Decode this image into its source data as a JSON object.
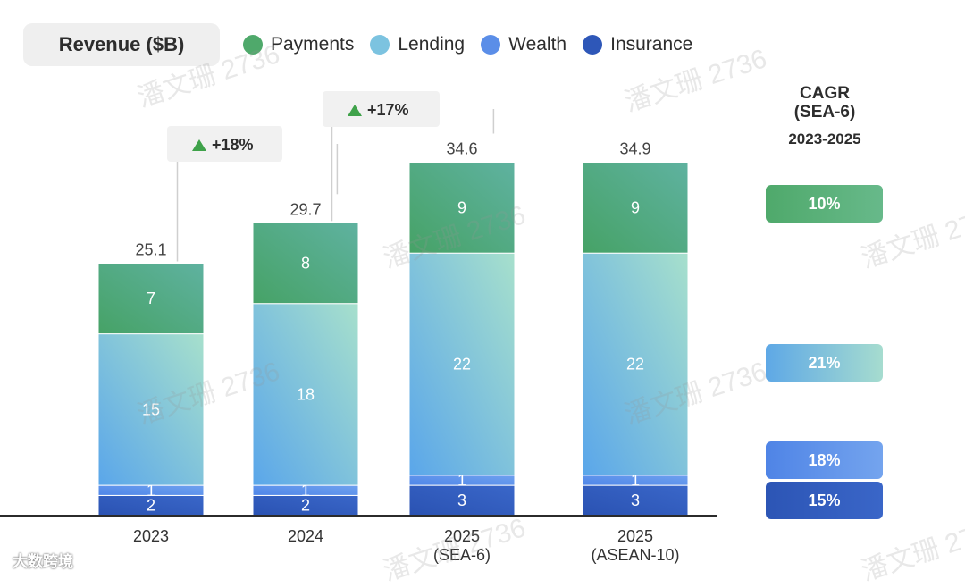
{
  "title": "Revenue ($B)",
  "colors": {
    "Payments": "#4fa96b",
    "Lending": "#7cc3e0",
    "Wealth": "#5b8ee8",
    "Insurance": "#2e57b8"
  },
  "chart_data": {
    "type": "bar",
    "stacked": true,
    "categories": [
      "2023",
      "2024",
      "2025\n(SEA-6)",
      "2025\n(ASEAN-10)"
    ],
    "series": [
      {
        "name": "Insurance",
        "values": [
          2,
          2,
          3,
          3
        ]
      },
      {
        "name": "Wealth",
        "values": [
          1,
          1,
          1,
          1
        ]
      },
      {
        "name": "Lending",
        "values": [
          15,
          18,
          22,
          22
        ]
      },
      {
        "name": "Payments",
        "values": [
          7,
          8,
          9,
          9
        ]
      }
    ],
    "totals": [
      25.1,
      29.7,
      34.6,
      34.9
    ],
    "legend_position": "top",
    "growth_annotations": [
      {
        "from": "2023",
        "to": "2024",
        "label": "+18%"
      },
      {
        "from": "2024",
        "to": "2025\n(SEA-6)",
        "label": "+17%"
      }
    ],
    "cagr": {
      "title": "CAGR\n(SEA-6)",
      "period": "2023-2025",
      "values": [
        {
          "series": "Payments",
          "label": "10%"
        },
        {
          "series": "Lending",
          "label": "21%"
        },
        {
          "series": "Wealth",
          "label": "18%"
        },
        {
          "series": "Insurance",
          "label": "15%"
        }
      ]
    }
  },
  "legend": [
    "Payments",
    "Lending",
    "Wealth",
    "Insurance"
  ],
  "watermark_text": "潘文珊 2736",
  "brand_text": "大数跨境"
}
